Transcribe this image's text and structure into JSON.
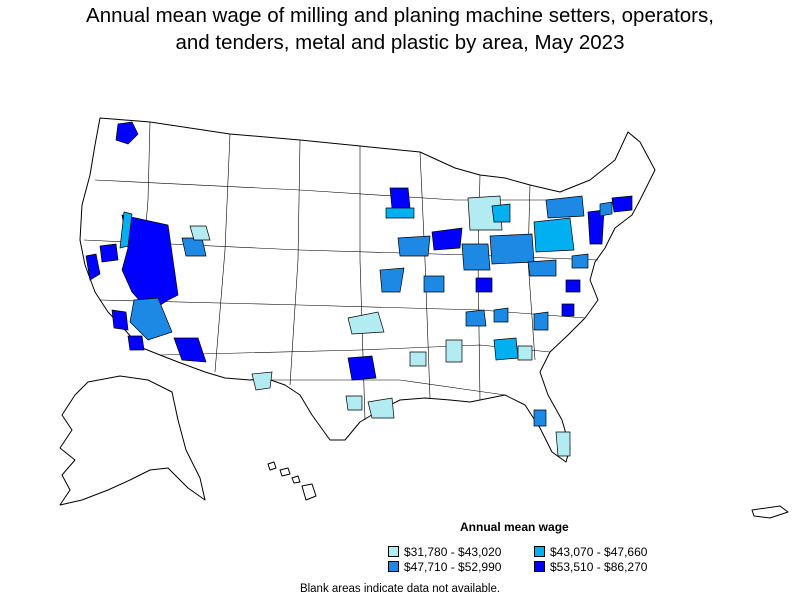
{
  "title": {
    "line1": "Annual mean wage of milling and planing machine setters, operators,",
    "line2": "and tenders, metal and plastic by area, May 2023"
  },
  "legend": {
    "title": "Annual mean wage",
    "items": [
      {
        "label": "$31,780 - $43,020",
        "color": "#b2ebf2"
      },
      {
        "label": "$43,070 - $47,660",
        "color": "#00b0f0"
      },
      {
        "label": "$47,710 - $52,990",
        "color": "#1e88e5"
      },
      {
        "label": "$53,510 - $86,270",
        "color": "#0000ff"
      }
    ]
  },
  "note": "Blank areas indicate data not available.",
  "colors": {
    "border": "#000000",
    "no_data": "#ffffff"
  }
}
